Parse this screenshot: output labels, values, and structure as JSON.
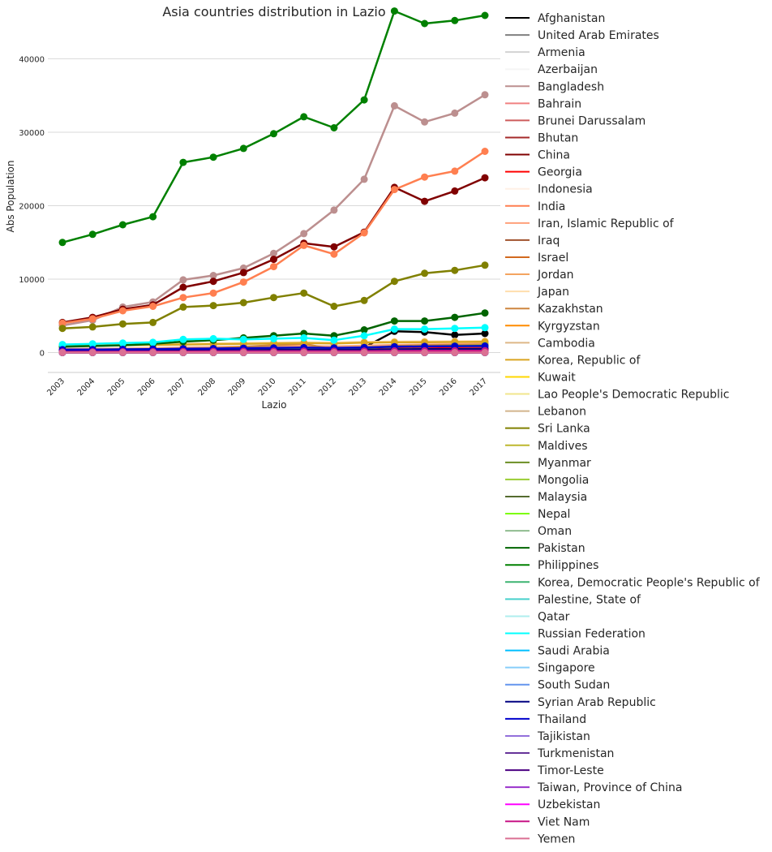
{
  "chart_data": {
    "type": "line",
    "title": "Asia countries distribution in Lazio",
    "xlabel": "Lazio",
    "ylabel": "Abs Population",
    "x": [
      "2003",
      "2004",
      "2005",
      "2006",
      "2007",
      "2008",
      "2009",
      "2010",
      "2011",
      "2012",
      "2013",
      "2014",
      "2015",
      "2016",
      "2017"
    ],
    "ylim": [
      -2700,
      48000
    ],
    "yticks": [
      0,
      10000,
      20000,
      30000,
      40000
    ],
    "grid": "horizontal",
    "legend_placement": "outside-right",
    "series": [
      {
        "name": "Afghanistan",
        "color": "#000000",
        "values": [
          300,
          300,
          350,
          400,
          450,
          500,
          550,
          600,
          650,
          550,
          700,
          2900,
          2800,
          2400,
          2600
        ]
      },
      {
        "name": "United Arab Emirates",
        "color": "#808080",
        "values": [
          5,
          5,
          5,
          5,
          5,
          5,
          5,
          5,
          5,
          5,
          5,
          5,
          5,
          5,
          5
        ]
      },
      {
        "name": "Armenia",
        "color": "#d3d3d3",
        "values": [
          100,
          110,
          120,
          130,
          150,
          160,
          170,
          180,
          190,
          180,
          200,
          230,
          240,
          250,
          260
        ]
      },
      {
        "name": "Azerbaijan",
        "color": "#f5f5f5",
        "values": [
          20,
          20,
          25,
          25,
          30,
          30,
          35,
          35,
          40,
          40,
          45,
          50,
          55,
          60,
          60
        ]
      },
      {
        "name": "Bangladesh",
        "color": "#bc8f8f",
        "values": [
          3700,
          4400,
          6200,
          6900,
          9900,
          10500,
          11500,
          13500,
          16200,
          19400,
          23600,
          33600,
          31400,
          32600,
          35100
        ]
      },
      {
        "name": "Bahrain",
        "color": "#f08080",
        "values": [
          5,
          5,
          5,
          5,
          5,
          5,
          5,
          5,
          5,
          5,
          5,
          5,
          5,
          5,
          5
        ]
      },
      {
        "name": "Brunei Darussalam",
        "color": "#cd5c5c",
        "values": [
          2,
          2,
          2,
          2,
          2,
          2,
          2,
          2,
          2,
          2,
          2,
          2,
          2,
          2,
          2
        ]
      },
      {
        "name": "Bhutan",
        "color": "#a52a2a",
        "values": [
          5,
          5,
          5,
          5,
          5,
          5,
          5,
          5,
          5,
          5,
          5,
          5,
          5,
          5,
          5
        ]
      },
      {
        "name": "China",
        "color": "#800000",
        "values": [
          4100,
          4800,
          5900,
          6500,
          8900,
          9700,
          10900,
          12700,
          14900,
          14400,
          16400,
          22500,
          20600,
          22000,
          23800
        ]
      },
      {
        "name": "Georgia",
        "color": "#ff0000",
        "values": [
          100,
          120,
          150,
          180,
          250,
          300,
          350,
          400,
          450,
          400,
          450,
          600,
          650,
          700,
          750
        ]
      },
      {
        "name": "Indonesia",
        "color": "#fff0e6",
        "values": [
          200,
          220,
          240,
          260,
          300,
          320,
          340,
          360,
          380,
          360,
          400,
          450,
          470,
          480,
          500
        ]
      },
      {
        "name": "India",
        "color": "#ff7f50",
        "values": [
          4000,
          4600,
          5700,
          6300,
          7500,
          8100,
          9600,
          11700,
          14600,
          13400,
          16300,
          22200,
          23900,
          24700,
          27400
        ]
      },
      {
        "name": "Iran, Islamic Republic of",
        "color": "#ffa07a",
        "values": [
          500,
          520,
          560,
          600,
          700,
          750,
          800,
          850,
          900,
          850,
          950,
          1050,
          1100,
          1150,
          1200
        ]
      },
      {
        "name": "Iraq",
        "color": "#a0522d",
        "values": [
          200,
          220,
          240,
          260,
          300,
          320,
          340,
          360,
          380,
          360,
          400,
          450,
          470,
          480,
          500
        ]
      },
      {
        "name": "Israel",
        "color": "#d2691e",
        "values": [
          300,
          310,
          320,
          330,
          350,
          360,
          370,
          380,
          390,
          380,
          400,
          420,
          430,
          440,
          450
        ]
      },
      {
        "name": "Jordan",
        "color": "#f4a460",
        "values": [
          400,
          420,
          450,
          480,
          520,
          560,
          600,
          640,
          680,
          640,
          700,
          800,
          850,
          880,
          900
        ]
      },
      {
        "name": "Japan",
        "color": "#ffdead",
        "values": [
          1000,
          1050,
          1100,
          1150,
          1200,
          1250,
          1300,
          1350,
          1400,
          1350,
          1450,
          1500,
          1520,
          1540,
          1560
        ]
      },
      {
        "name": "Kazakhstan",
        "color": "#cd853f",
        "values": [
          300,
          320,
          350,
          380,
          500,
          600,
          800,
          1000,
          1200,
          400,
          600,
          900,
          1000,
          1050,
          1100
        ]
      },
      {
        "name": "Kyrgyzstan",
        "color": "#ff8c00",
        "values": [
          100,
          110,
          120,
          130,
          150,
          160,
          170,
          180,
          190,
          180,
          200,
          230,
          240,
          250,
          260
        ]
      },
      {
        "name": "Cambodia",
        "color": "#deb887",
        "values": [
          50,
          55,
          60,
          65,
          70,
          75,
          80,
          85,
          90,
          85,
          95,
          100,
          105,
          110,
          115
        ]
      },
      {
        "name": "Korea, Republic of",
        "color": "#daa520",
        "values": [
          900,
          950,
          1000,
          1050,
          1100,
          1150,
          1200,
          1250,
          1300,
          1250,
          1350,
          1400,
          1420,
          1440,
          1460
        ]
      },
      {
        "name": "Kuwait",
        "color": "#ffd700",
        "values": [
          10,
          10,
          10,
          10,
          10,
          10,
          10,
          10,
          10,
          10,
          10,
          10,
          10,
          10,
          10
        ]
      },
      {
        "name": "Lao People's Democratic Republic",
        "color": "#f0e68c",
        "values": [
          20,
          20,
          20,
          20,
          20,
          20,
          20,
          20,
          20,
          20,
          20,
          20,
          20,
          20,
          20
        ]
      },
      {
        "name": "Lebanon",
        "color": "#d2b48c",
        "values": [
          400,
          420,
          450,
          480,
          520,
          560,
          600,
          640,
          680,
          640,
          700,
          800,
          850,
          880,
          900
        ]
      },
      {
        "name": "Sri Lanka",
        "color": "#808000",
        "values": [
          3300,
          3500,
          3900,
          4100,
          6200,
          6400,
          6800,
          7500,
          8100,
          6300,
          7100,
          9700,
          10800,
          11200,
          11900
        ]
      },
      {
        "name": "Maldives",
        "color": "#bdb72f",
        "values": [
          5,
          5,
          5,
          5,
          5,
          5,
          5,
          5,
          5,
          5,
          5,
          5,
          5,
          5,
          5
        ]
      },
      {
        "name": "Myanmar",
        "color": "#6b8e23",
        "values": [
          100,
          110,
          120,
          130,
          150,
          160,
          170,
          180,
          190,
          180,
          200,
          230,
          240,
          250,
          260
        ]
      },
      {
        "name": "Mongolia",
        "color": "#9acd32",
        "values": [
          50,
          55,
          60,
          65,
          70,
          75,
          80,
          85,
          90,
          85,
          95,
          100,
          105,
          110,
          115
        ]
      },
      {
        "name": "Malaysia",
        "color": "#556b2f",
        "values": [
          150,
          160,
          170,
          180,
          190,
          200,
          210,
          220,
          230,
          220,
          240,
          250,
          260,
          270,
          280
        ]
      },
      {
        "name": "Nepal",
        "color": "#7cfc00",
        "values": [
          200,
          250,
          300,
          350,
          450,
          500,
          550,
          600,
          650,
          600,
          700,
          800,
          850,
          900,
          950
        ]
      },
      {
        "name": "Oman",
        "color": "#8fbc8f",
        "values": [
          5,
          5,
          5,
          5,
          5,
          5,
          5,
          5,
          5,
          5,
          5,
          5,
          5,
          5,
          5
        ]
      },
      {
        "name": "Pakistan",
        "color": "#006400",
        "values": [
          800,
          900,
          1000,
          1200,
          1500,
          1700,
          2000,
          2300,
          2600,
          2300,
          3100,
          4300,
          4300,
          4800,
          5400
        ]
      },
      {
        "name": "Philippines",
        "color": "#008000",
        "values": [
          15000,
          16100,
          17400,
          18500,
          25900,
          26600,
          27800,
          29800,
          32100,
          30600,
          34400,
          46500,
          44800,
          45200,
          45900
        ]
      },
      {
        "name": "Korea, Democratic People's Republic of",
        "color": "#3cb371",
        "values": [
          10,
          10,
          10,
          10,
          10,
          10,
          10,
          10,
          10,
          10,
          10,
          10,
          10,
          10,
          10
        ]
      },
      {
        "name": "Palestine, State of",
        "color": "#48d1cc",
        "values": [
          20,
          20,
          25,
          25,
          30,
          30,
          35,
          35,
          40,
          40,
          45,
          50,
          55,
          60,
          60
        ]
      },
      {
        "name": "Qatar",
        "color": "#afeeee",
        "values": [
          5,
          5,
          5,
          5,
          5,
          5,
          5,
          5,
          5,
          5,
          5,
          5,
          5,
          5,
          5
        ]
      },
      {
        "name": "Russian Federation",
        "color": "#00ffff",
        "values": [
          1100,
          1200,
          1300,
          1400,
          1800,
          1900,
          1800,
          1900,
          2000,
          1700,
          2300,
          3200,
          3200,
          3300,
          3400
        ]
      },
      {
        "name": "Saudi Arabia",
        "color": "#00bfff",
        "values": [
          5,
          5,
          5,
          5,
          5,
          5,
          5,
          5,
          5,
          5,
          5,
          5,
          5,
          5,
          5
        ]
      },
      {
        "name": "Singapore",
        "color": "#87cefa",
        "values": [
          20,
          20,
          25,
          25,
          30,
          30,
          35,
          35,
          40,
          40,
          45,
          50,
          55,
          60,
          60
        ]
      },
      {
        "name": "South Sudan",
        "color": "#6495ed",
        "values": [
          0,
          0,
          0,
          0,
          0,
          0,
          0,
          0,
          0,
          0,
          0,
          0,
          0,
          0,
          0
        ]
      },
      {
        "name": "Syrian Arab Republic",
        "color": "#000080",
        "values": [
          200,
          220,
          240,
          260,
          300,
          320,
          340,
          360,
          380,
          360,
          400,
          450,
          470,
          480,
          500
        ]
      },
      {
        "name": "Thailand",
        "color": "#0000cd",
        "values": [
          400,
          420,
          450,
          480,
          520,
          560,
          600,
          640,
          680,
          640,
          700,
          800,
          850,
          880,
          900
        ]
      },
      {
        "name": "Tajikistan",
        "color": "#9370db",
        "values": [
          10,
          10,
          10,
          10,
          10,
          10,
          10,
          10,
          10,
          10,
          10,
          10,
          10,
          10,
          10
        ]
      },
      {
        "name": "Turkmenistan",
        "color": "#663399",
        "values": [
          5,
          5,
          5,
          5,
          5,
          5,
          5,
          5,
          5,
          5,
          5,
          5,
          5,
          5,
          5
        ]
      },
      {
        "name": "Timor-Leste",
        "color": "#4b0082",
        "values": [
          2,
          2,
          2,
          2,
          2,
          2,
          2,
          2,
          2,
          2,
          2,
          2,
          2,
          2,
          2
        ]
      },
      {
        "name": "Taiwan, Province of China",
        "color": "#9932cc",
        "values": [
          100,
          110,
          120,
          130,
          150,
          160,
          170,
          180,
          190,
          180,
          200,
          230,
          240,
          250,
          260
        ]
      },
      {
        "name": "Uzbekistan",
        "color": "#ff00ff",
        "values": [
          50,
          55,
          60,
          65,
          70,
          75,
          80,
          85,
          90,
          85,
          95,
          100,
          105,
          110,
          115
        ]
      },
      {
        "name": "Viet Nam",
        "color": "#c71585",
        "values": [
          100,
          110,
          120,
          130,
          150,
          160,
          170,
          180,
          190,
          180,
          200,
          230,
          240,
          250,
          260
        ]
      },
      {
        "name": "Yemen",
        "color": "#db7093",
        "values": [
          5,
          5,
          5,
          5,
          5,
          5,
          5,
          5,
          5,
          5,
          5,
          5,
          5,
          5,
          5
        ]
      }
    ]
  }
}
